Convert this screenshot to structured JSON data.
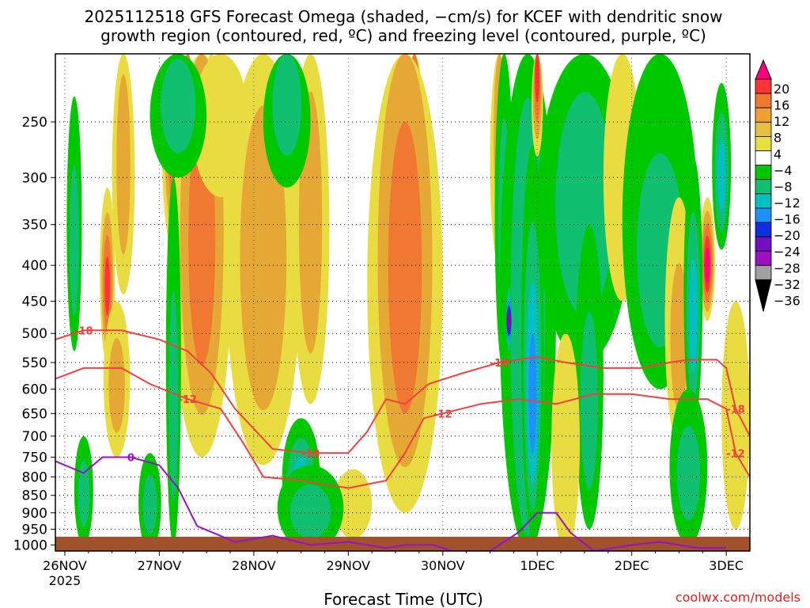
{
  "chart_data": {
    "type": "heatmap",
    "title_line1": "2025112518 GFS Forecast Omega (shaded, −cm/s) for KCEF with dendritic snow",
    "title_line2": "growth region (contoured, red, ºC) and freezing level (contoured, purple, ºC)",
    "xlabel": "Forecast Time (UTC)",
    "credit": "coolwx.com/models",
    "x_ticks": [
      {
        "label": "26NOV",
        "sub": "2025",
        "day": 0
      },
      {
        "label": "27NOV",
        "sub": "",
        "day": 1
      },
      {
        "label": "28NOV",
        "sub": "",
        "day": 2
      },
      {
        "label": "29NOV",
        "sub": "",
        "day": 3
      },
      {
        "label": "30NOV",
        "sub": "",
        "day": 4
      },
      {
        "label": "1DEC",
        "sub": "",
        "day": 5
      },
      {
        "label": "2DEC",
        "sub": "",
        "day": 6
      },
      {
        "label": "3DEC",
        "sub": "",
        "day": 7
      }
    ],
    "x_range_days": [
      -0.1,
      7.25
    ],
    "y_ticks": [
      250,
      300,
      350,
      400,
      450,
      500,
      550,
      600,
      650,
      700,
      750,
      800,
      850,
      900,
      950,
      1000
    ],
    "y_range_hpa": [
      200,
      1020
    ],
    "y_scale": "log",
    "grid": true,
    "colorbar": {
      "labels": [
        "20",
        "16",
        "12",
        "8",
        "4",
        "−4",
        "−8",
        "−12",
        "−16",
        "−20",
        "−24",
        "−28",
        "−32",
        "−36"
      ],
      "colors": [
        "#ff0080",
        "#ff3434",
        "#f07830",
        "#f0a030",
        "#e6c040",
        "#e8e040",
        "#ffffff",
        "#00c800",
        "#10c070",
        "#00c0c0",
        "#1e90ff",
        "#1030e0",
        "#7010c0",
        "#9c10c0",
        "#a0a0a0",
        "#000000"
      ]
    },
    "omega_cells": [
      {
        "day": 0.45,
        "p": 430,
        "v": 16,
        "dt": 0.08,
        "dp": 120
      },
      {
        "day": 0.62,
        "p": 300,
        "v": 8,
        "dt": 0.12,
        "dp": 140
      },
      {
        "day": 0.55,
        "p": 600,
        "v": 8,
        "dt": 0.14,
        "dp": 150
      },
      {
        "day": 0.1,
        "p": 380,
        "v": -8,
        "dt": 0.08,
        "dp": 150
      },
      {
        "day": 0.2,
        "p": 850,
        "v": -8,
        "dt": 0.1,
        "dp": 150
      },
      {
        "day": 1.15,
        "p": 260,
        "v": 16,
        "dt": 0.12,
        "dp": 120
      },
      {
        "day": 1.3,
        "p": 260,
        "v": 20,
        "dt": 0.1,
        "dp": 110
      },
      {
        "day": 1.55,
        "p": 420,
        "v": 20,
        "dt": 0.14,
        "dp": 220
      },
      {
        "day": 1.45,
        "p": 400,
        "v": 12,
        "dt": 0.32,
        "dp": 350
      },
      {
        "day": 1.65,
        "p": 230,
        "v": 4,
        "dt": 0.3,
        "dp": 90
      },
      {
        "day": 2.15,
        "p": 500,
        "v": 16,
        "dt": 0.18,
        "dp": 160
      },
      {
        "day": 2.1,
        "p": 440,
        "v": 8,
        "dt": 0.4,
        "dp": 330
      },
      {
        "day": 2.6,
        "p": 380,
        "v": 8,
        "dt": 0.2,
        "dp": 250
      },
      {
        "day": 3.7,
        "p": 350,
        "v": 20,
        "dt": 0.14,
        "dp": 300
      },
      {
        "day": 3.6,
        "p": 450,
        "v": 12,
        "dt": 0.4,
        "dp": 450
      },
      {
        "day": 3.05,
        "p": 880,
        "v": 4,
        "dt": 0.2,
        "dp": 100
      },
      {
        "day": 2.5,
        "p": 820,
        "v": -12,
        "dt": 0.2,
        "dp": 160
      },
      {
        "day": 2.6,
        "p": 900,
        "v": -8,
        "dt": 0.35,
        "dp": 130
      },
      {
        "day": 1.15,
        "p": 650,
        "v": -8,
        "dt": 0.08,
        "dp": 350
      },
      {
        "day": 0.9,
        "p": 880,
        "v": -8,
        "dt": 0.12,
        "dp": 140
      },
      {
        "day": 1.2,
        "p": 240,
        "v": -8,
        "dt": 0.3,
        "dp": 60
      },
      {
        "day": 2.35,
        "p": 230,
        "v": -8,
        "dt": 0.25,
        "dp": 80
      },
      {
        "day": 4.6,
        "p": 250,
        "v": 8,
        "dt": 0.1,
        "dp": 150
      },
      {
        "day": 4.65,
        "p": 370,
        "v": -8,
        "dt": 0.1,
        "dp": 200
      },
      {
        "day": 4.9,
        "p": 600,
        "v": -8,
        "dt": 0.3,
        "dp": 600
      },
      {
        "day": 4.95,
        "p": 620,
        "v": -16,
        "dt": 0.12,
        "dp": 350
      },
      {
        "day": 4.7,
        "p": 480,
        "v": -24,
        "dt": 0.03,
        "dp": 60
      },
      {
        "day": 5.0,
        "p": 210,
        "v": 16,
        "dt": 0.06,
        "dp": 70
      },
      {
        "day": 5.5,
        "p": 350,
        "v": -8,
        "dt": 0.5,
        "dp": 200
      },
      {
        "day": 5.55,
        "p": 650,
        "v": -8,
        "dt": 0.15,
        "dp": 300
      },
      {
        "day": 5.3,
        "p": 800,
        "v": 4,
        "dt": 0.15,
        "dp": 300
      },
      {
        "day": 5.9,
        "p": 300,
        "v": 4,
        "dt": 0.2,
        "dp": 150
      },
      {
        "day": 6.3,
        "p": 400,
        "v": -8,
        "dt": 0.4,
        "dp": 200
      },
      {
        "day": 6.5,
        "p": 520,
        "v": 8,
        "dt": 0.15,
        "dp": 200
      },
      {
        "day": 6.8,
        "p": 400,
        "v": 20,
        "dt": 0.08,
        "dp": 80
      },
      {
        "day": 6.65,
        "p": 480,
        "v": -12,
        "dt": 0.1,
        "dp": 200
      },
      {
        "day": 6.95,
        "p": 300,
        "v": -12,
        "dt": 0.1,
        "dp": 80
      },
      {
        "day": 7.1,
        "p": 700,
        "v": 4,
        "dt": 0.15,
        "dp": 250
      },
      {
        "day": 6.6,
        "p": 800,
        "v": -8,
        "dt": 0.2,
        "dp": 200
      }
    ],
    "dgz_contours": [
      {
        "label": "-18",
        "points": [
          [
            -0.1,
            510
          ],
          [
            0.2,
            495
          ],
          [
            0.6,
            495
          ],
          [
            1.0,
            510
          ],
          [
            1.3,
            530
          ],
          [
            1.55,
            570
          ],
          [
            1.8,
            640
          ],
          [
            2.2,
            730
          ],
          [
            2.6,
            740
          ],
          [
            3.0,
            740
          ],
          [
            3.2,
            690
          ],
          [
            3.4,
            620
          ],
          [
            3.6,
            630
          ],
          [
            3.85,
            590
          ],
          [
            4.2,
            570
          ],
          [
            4.6,
            550
          ],
          [
            5.0,
            540
          ],
          [
            5.3,
            550
          ],
          [
            5.7,
            560
          ],
          [
            6.1,
            560
          ],
          [
            6.4,
            550
          ],
          [
            6.6,
            545
          ],
          [
            6.9,
            545
          ],
          [
            7.0,
            560
          ],
          [
            7.1,
            640
          ],
          [
            7.25,
            700
          ]
        ]
      },
      {
        "label": "-12",
        "points": [
          [
            -0.1,
            580
          ],
          [
            0.2,
            560
          ],
          [
            0.6,
            560
          ],
          [
            0.9,
            590
          ],
          [
            1.3,
            620
          ],
          [
            1.65,
            640
          ],
          [
            1.9,
            720
          ],
          [
            2.1,
            800
          ],
          [
            2.5,
            810
          ],
          [
            3.0,
            830
          ],
          [
            3.4,
            810
          ],
          [
            3.6,
            740
          ],
          [
            3.8,
            660
          ],
          [
            4.0,
            650
          ],
          [
            4.4,
            630
          ],
          [
            4.8,
            620
          ],
          [
            5.2,
            630
          ],
          [
            5.6,
            610
          ],
          [
            6.0,
            610
          ],
          [
            6.4,
            620
          ],
          [
            6.8,
            620
          ],
          [
            7.0,
            640
          ],
          [
            7.1,
            740
          ],
          [
            7.25,
            800
          ]
        ]
      }
    ],
    "freezing_level": {
      "label": "0",
      "points": [
        [
          -0.1,
          760
        ],
        [
          0.2,
          790
        ],
        [
          0.4,
          750
        ],
        [
          0.7,
          750
        ],
        [
          1.0,
          770
        ],
        [
          1.2,
          830
        ],
        [
          1.4,
          940
        ],
        [
          1.8,
          990
        ],
        [
          2.2,
          970
        ],
        [
          2.6,
          1000
        ],
        [
          3.0,
          990
        ],
        [
          3.4,
          1010
        ],
        [
          3.6,
          1000
        ],
        [
          3.9,
          1000
        ],
        [
          4.1,
          1020
        ],
        [
          4.5,
          1020
        ],
        [
          4.8,
          960
        ],
        [
          5.0,
          900
        ],
        [
          5.2,
          900
        ],
        [
          5.35,
          960
        ],
        [
          5.6,
          1020
        ],
        [
          6.0,
          1000
        ],
        [
          6.3,
          990
        ],
        [
          6.7,
          1010
        ],
        [
          7.0,
          1010
        ]
      ]
    }
  }
}
